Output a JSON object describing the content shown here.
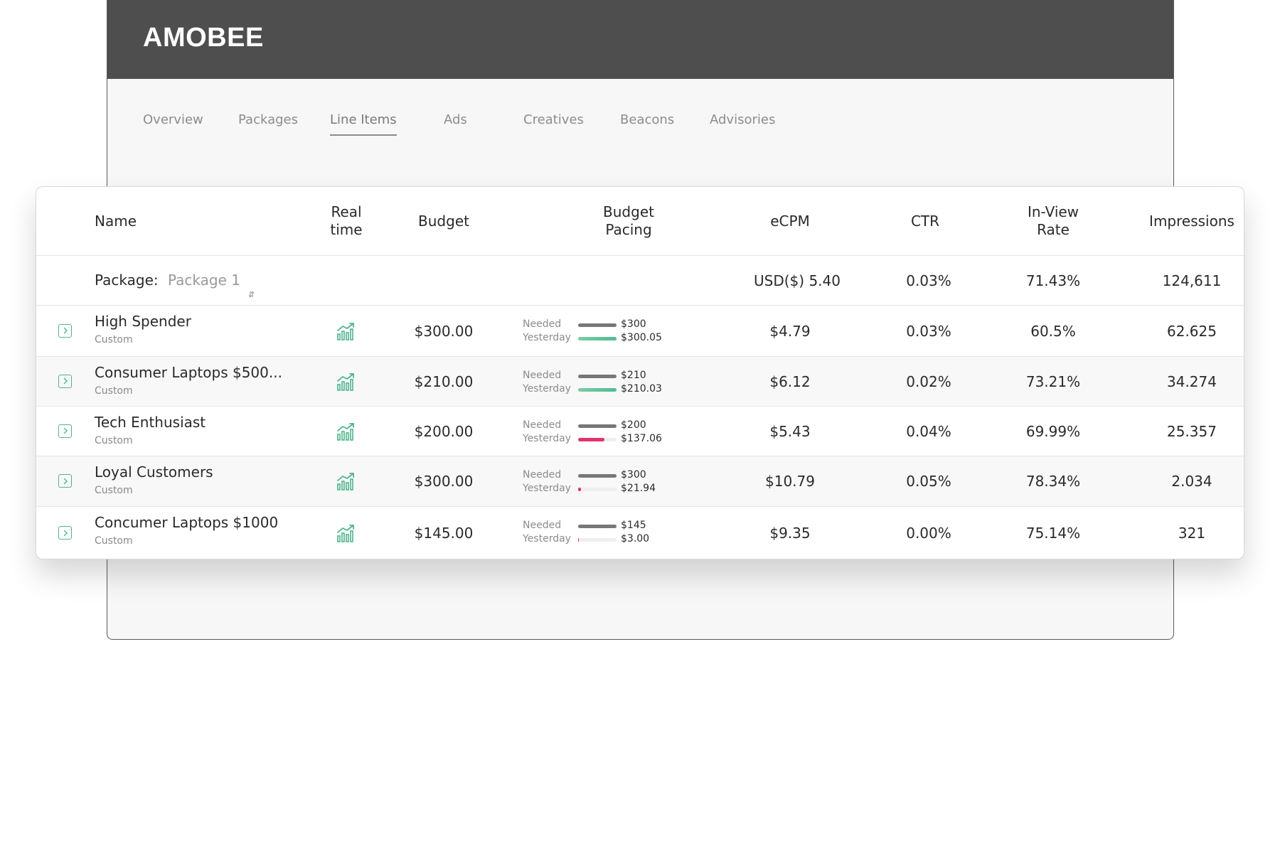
{
  "app": {
    "brand": "AMOBEE",
    "tabs": [
      {
        "label": "Overview"
      },
      {
        "label": "Packages"
      },
      {
        "label": "Line Items",
        "active": true
      },
      {
        "label": "Ads"
      },
      {
        "label": "Creatives"
      },
      {
        "label": "Beacons"
      },
      {
        "label": "Advisories"
      }
    ]
  },
  "table": {
    "headers": {
      "name": "Name",
      "realtime_1": "Real",
      "realtime_2": "time",
      "budget": "Budget",
      "pacing_1": "Budget",
      "pacing_2": "Pacing",
      "ecpm": "eCPM",
      "ctr": "CTR",
      "inview_1": "In-View",
      "inview_2": "Rate",
      "impressions": "Impressions"
    },
    "package": {
      "label": "Package:",
      "selected": "Package 1",
      "ecpm": "USD($) 5.40",
      "ctr": "0.03%",
      "inview": "71.43%",
      "impressions": "124,611"
    },
    "pacing_labels": {
      "needed": "Needed",
      "yesterday": "Yesterday"
    },
    "colors": {
      "on_track": "#4fbd8f",
      "under": "#e2336b",
      "needed": "#777777",
      "accent": "#4fb48c"
    },
    "rows": [
      {
        "name": "High Spender",
        "type": "Custom",
        "budget": "$300.00",
        "needed": "$300",
        "yesterday": "$300.05",
        "yesterday_fraction": 1.0,
        "status": "on_track",
        "ecpm": "$4.79",
        "ctr": "0.03%",
        "inview": "60.5%",
        "impressions": "62.625"
      },
      {
        "name": "Consumer Laptops $500...",
        "type": "Custom",
        "budget": "$210.00",
        "needed": "$210",
        "yesterday": "$210.03",
        "yesterday_fraction": 1.0,
        "status": "on_track",
        "ecpm": "$6.12",
        "ctr": "0.02%",
        "inview": "73.21%",
        "impressions": "34.274"
      },
      {
        "name": "Tech Enthusiast",
        "type": "Custom",
        "budget": "$200.00",
        "needed": "$200",
        "yesterday": "$137.06",
        "yesterday_fraction": 0.69,
        "status": "under",
        "ecpm": "$5.43",
        "ctr": "0.04%",
        "inview": "69.99%",
        "impressions": "25.357"
      },
      {
        "name": "Loyal Customers",
        "type": "Custom",
        "budget": "$300.00",
        "needed": "$300",
        "yesterday": "$21.94",
        "yesterday_fraction": 0.07,
        "status": "under",
        "ecpm": "$10.79",
        "ctr": "0.05%",
        "inview": "78.34%",
        "impressions": "2.034"
      },
      {
        "name": "Concumer Laptops $1000",
        "type": "Custom",
        "budget": "$145.00",
        "needed": "$145",
        "yesterday": "$3.00",
        "yesterday_fraction": 0.02,
        "status": "under",
        "ecpm": "$9.35",
        "ctr": "0.00%",
        "inview": "75.14%",
        "impressions": "321"
      }
    ]
  }
}
